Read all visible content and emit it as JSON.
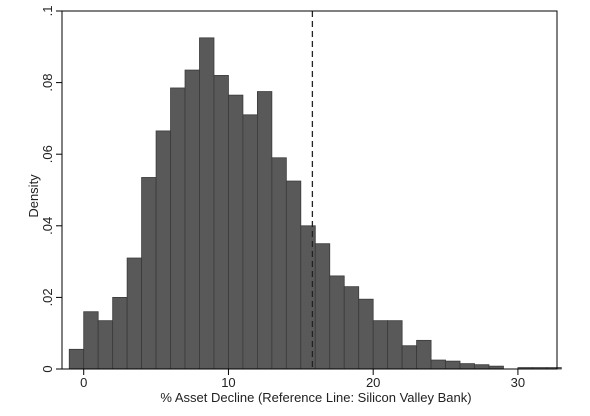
{
  "chart_data": {
    "type": "bar",
    "subtype": "histogram",
    "xlabel": "% Asset Decline (Reference Line: Silicon Valley Bank)",
    "ylabel": "Density",
    "xlim": [
      -1.5,
      32.7
    ],
    "ylim": [
      0,
      0.1
    ],
    "x_ticks": [
      0,
      10,
      20,
      30
    ],
    "x_tick_labels": [
      "0",
      "10",
      "20",
      "30"
    ],
    "y_ticks": [
      0,
      0.02,
      0.04,
      0.06,
      0.08,
      0.1
    ],
    "y_tick_labels": [
      "0",
      ".02",
      ".04",
      ".06",
      ".08",
      ".1"
    ],
    "grid": false,
    "legend": "none",
    "bar_color": "#595959",
    "bar_edge_color": "#3a3a3a",
    "reference_line": {
      "x": 15.8,
      "style": "dashed"
    },
    "bins": [
      {
        "start": -1.0,
        "end": 0.0,
        "value": 0.0055
      },
      {
        "start": 0.0,
        "end": 1.0,
        "value": 0.016
      },
      {
        "start": 1.0,
        "end": 2.0,
        "value": 0.0135
      },
      {
        "start": 2.0,
        "end": 3.0,
        "value": 0.02
      },
      {
        "start": 3.0,
        "end": 4.0,
        "value": 0.031
      },
      {
        "start": 4.0,
        "end": 5.0,
        "value": 0.0535
      },
      {
        "start": 5.0,
        "end": 6.0,
        "value": 0.0665
      },
      {
        "start": 6.0,
        "end": 7.0,
        "value": 0.0785
      },
      {
        "start": 7.0,
        "end": 8.0,
        "value": 0.0835
      },
      {
        "start": 8.0,
        "end": 9.0,
        "value": 0.0925
      },
      {
        "start": 9.0,
        "end": 10.0,
        "value": 0.082
      },
      {
        "start": 10.0,
        "end": 11.0,
        "value": 0.0765
      },
      {
        "start": 11.0,
        "end": 12.0,
        "value": 0.071
      },
      {
        "start": 12.0,
        "end": 13.0,
        "value": 0.0775
      },
      {
        "start": 13.0,
        "end": 14.0,
        "value": 0.059
      },
      {
        "start": 14.0,
        "end": 15.0,
        "value": 0.0525
      },
      {
        "start": 15.0,
        "end": 16.0,
        "value": 0.04
      },
      {
        "start": 16.0,
        "end": 17.0,
        "value": 0.035
      },
      {
        "start": 17.0,
        "end": 18.0,
        "value": 0.026
      },
      {
        "start": 18.0,
        "end": 19.0,
        "value": 0.023
      },
      {
        "start": 19.0,
        "end": 20.0,
        "value": 0.0195
      },
      {
        "start": 20.0,
        "end": 21.0,
        "value": 0.0135
      },
      {
        "start": 21.0,
        "end": 22.0,
        "value": 0.0135
      },
      {
        "start": 22.0,
        "end": 23.0,
        "value": 0.0065
      },
      {
        "start": 23.0,
        "end": 24.0,
        "value": 0.008
      },
      {
        "start": 24.0,
        "end": 25.0,
        "value": 0.0025
      },
      {
        "start": 25.0,
        "end": 26.0,
        "value": 0.0022
      },
      {
        "start": 26.0,
        "end": 27.0,
        "value": 0.0015
      },
      {
        "start": 27.0,
        "end": 28.0,
        "value": 0.0012
      },
      {
        "start": 28.0,
        "end": 29.0,
        "value": 0.0008
      },
      {
        "start": 30.0,
        "end": 31.0,
        "value": 0.0004
      },
      {
        "start": 31.0,
        "end": 32.0,
        "value": 0.0004
      },
      {
        "start": 32.0,
        "end": 33.0,
        "value": 0.0004
      }
    ]
  }
}
